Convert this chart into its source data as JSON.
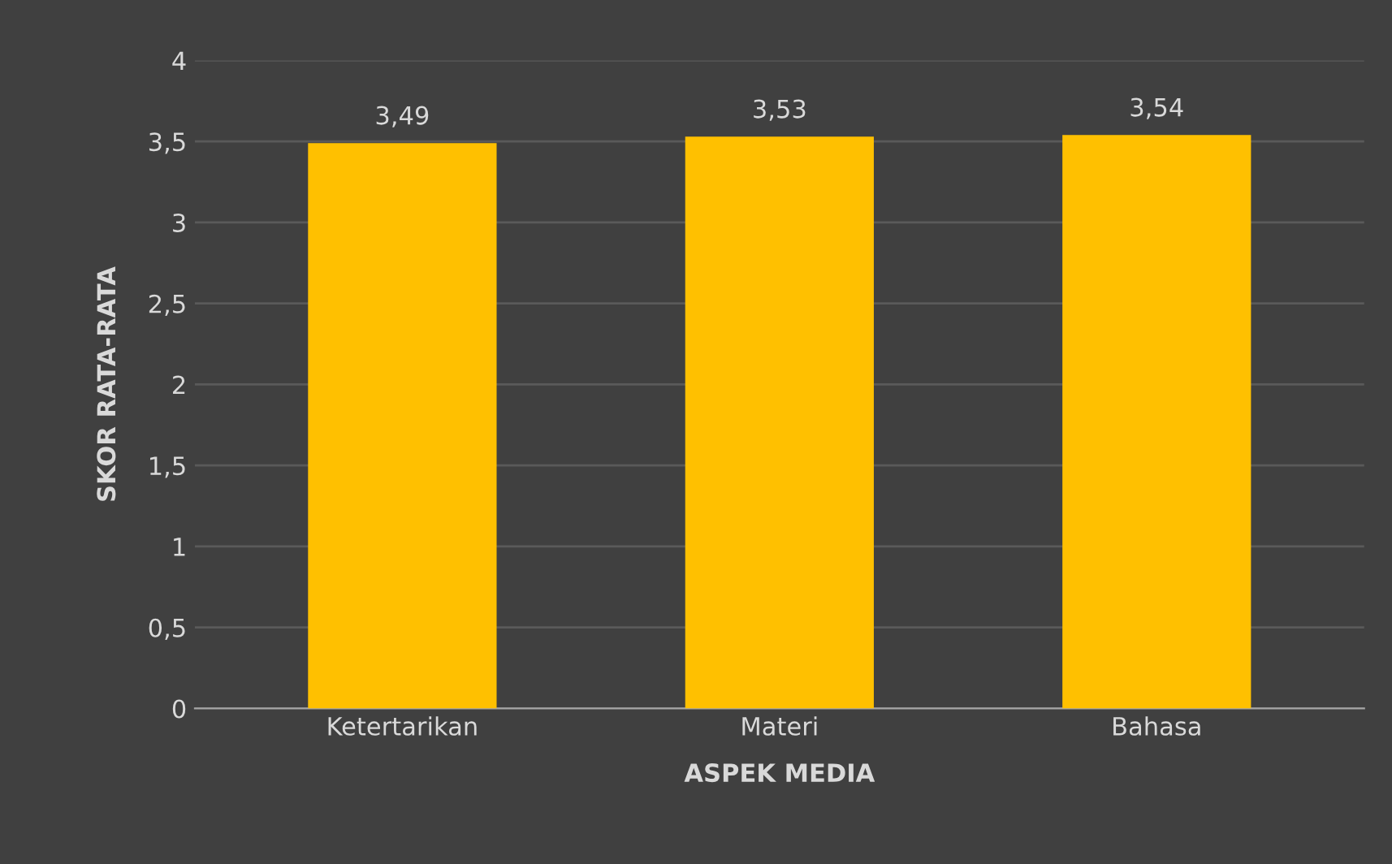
{
  "chart_data": {
    "type": "bar",
    "xlabel": "ASPEK MEDIA",
    "ylabel": "SKOR RATA-RATA",
    "categories": [
      "Ketertarikan",
      "Materi",
      "Bahasa"
    ],
    "values": [
      3.49,
      3.53,
      3.54
    ],
    "value_labels": [
      "3,49",
      "3,53",
      "3,54"
    ],
    "color": "#ffc000",
    "ylim": [
      0,
      4
    ],
    "yticks": [
      0,
      {
        "value": 0.5,
        "label": "0,5"
      },
      1,
      {
        "value": 1.5,
        "label": "1,5"
      },
      2,
      {
        "value": 2.5,
        "label": "2,5"
      },
      3,
      {
        "value": 3.5,
        "label": "3,5"
      },
      4
    ],
    "grid": "y"
  }
}
